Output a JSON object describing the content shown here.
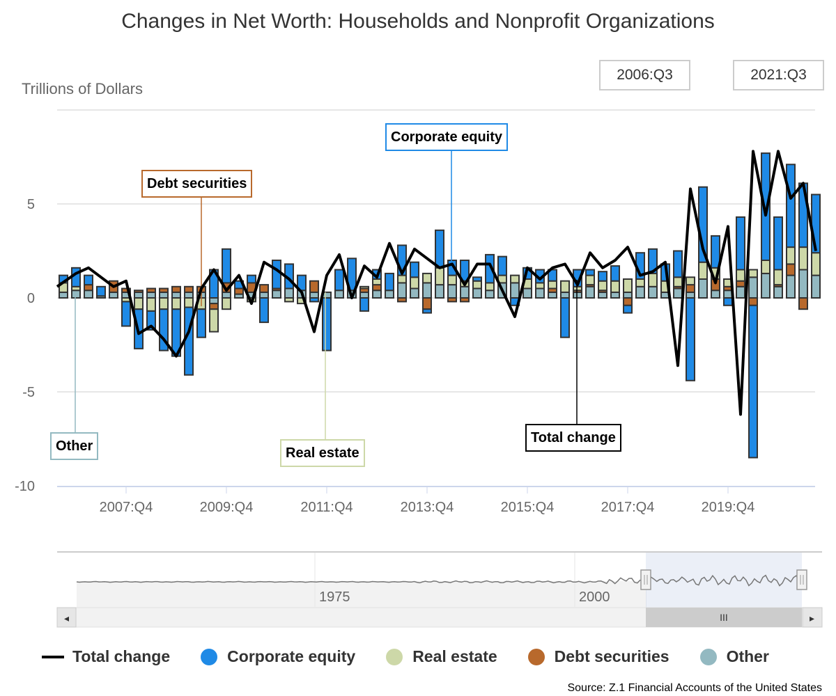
{
  "title": "Changes in Net Worth: Households and Nonprofit Organizations",
  "range_selector": {
    "from": "2006:Q3",
    "to": "2021:Q3"
  },
  "source": "Source: Z.1 Financial Accounts of the United States",
  "colors": {
    "total": "#000000",
    "corporate_equity": "#1f8ae6",
    "real_estate": "#cdd8a8",
    "debt_securities": "#b8692c",
    "other": "#93b9c1",
    "bar_stroke": "#333333"
  },
  "annotations": [
    {
      "id": "debt",
      "label": "Debt securities"
    },
    {
      "id": "equity",
      "label": "Corporate equity"
    },
    {
      "id": "other",
      "label": "Other"
    },
    {
      "id": "realestate",
      "label": "Real estate"
    },
    {
      "id": "total",
      "label": "Total change"
    }
  ],
  "legend": [
    {
      "key": "total",
      "label": "Total change"
    },
    {
      "key": "corporate_equity",
      "label": "Corporate equity"
    },
    {
      "key": "real_estate",
      "label": "Real estate"
    },
    {
      "key": "debt_securities",
      "label": "Debt securities"
    },
    {
      "key": "other",
      "label": "Other"
    }
  ],
  "navigator": {
    "tick_labels": [
      "1975",
      "2000"
    ],
    "scroll_left": "◂",
    "scroll_right": "▸",
    "grip": "III"
  },
  "chart_data": {
    "type": "bar",
    "stacked": true,
    "title": "Changes in Net Worth: Households and Nonprofit Organizations",
    "ylabel": "Trillions of Dollars",
    "xlabel": "",
    "ylim": [
      -10,
      10
    ],
    "yticks": [
      -10,
      -5,
      0,
      5
    ],
    "xtick_labels": [
      "2007:Q4",
      "2009:Q4",
      "2011:Q4",
      "2013:Q4",
      "2015:Q4",
      "2017:Q4",
      "2019:Q4"
    ],
    "xtick_start_index": 5,
    "xtick_step": 8,
    "grid": true,
    "legend_position": "bottom",
    "categories_start": "2006:Q3",
    "categories_end": "2021:Q3",
    "series": [
      {
        "name": "Corporate equity",
        "key": "corporate_equity",
        "type": "bar",
        "values": [
          0.4,
          1.0,
          0.5,
          0.5,
          0.0,
          -1.3,
          -2.1,
          -1.0,
          -2.2,
          -2.5,
          -3.6,
          -1.5,
          1.5,
          1.8,
          0.4,
          0.4,
          -1.3,
          1.5,
          1.3,
          0.8,
          -0.2,
          -2.8,
          1.1,
          1.7,
          -0.7,
          0.5,
          0.9,
          1.6,
          0.8,
          -0.2,
          2.0,
          0.8,
          1.1,
          0.2,
          1.5,
          1.0,
          -0.4,
          0.6,
          0.7,
          0.6,
          -2.1,
          0.9,
          0.3,
          0.5,
          0.8,
          -0.4,
          1.4,
          1.3,
          0.9,
          1.4,
          -4.4,
          4.0,
          1.7,
          -0.4,
          2.8,
          -8.1,
          5.7,
          2.8,
          4.4,
          3.4,
          3.1
        ]
      },
      {
        "name": "Real estate",
        "key": "real_estate",
        "type": "bar",
        "values": [
          0.5,
          0.2,
          0.0,
          0.0,
          0.0,
          -0.2,
          -0.6,
          -0.7,
          -0.6,
          -0.6,
          -0.5,
          -0.6,
          -1.2,
          -0.6,
          0.0,
          -0.2,
          0.0,
          0.0,
          -0.2,
          -0.3,
          0.0,
          0.0,
          0.0,
          0.0,
          0.1,
          0.3,
          0.0,
          0.4,
          0.6,
          0.5,
          0.9,
          0.5,
          0.3,
          0.4,
          0.4,
          0.4,
          0.4,
          0.5,
          0.3,
          0.4,
          0.6,
          0.2,
          0.5,
          0.5,
          0.6,
          0.7,
          0.4,
          0.7,
          0.6,
          0.5,
          0.4,
          0.9,
          0.6,
          0.4,
          0.6,
          0.4,
          0.7,
          0.8,
          0.9,
          1.2,
          1.2
        ]
      },
      {
        "name": "Debt securities",
        "key": "debt_securities",
        "type": "bar",
        "values": [
          0.0,
          0.0,
          0.3,
          0.0,
          0.6,
          0.2,
          0.1,
          0.2,
          0.2,
          0.3,
          0.3,
          0.3,
          -0.3,
          0.5,
          0.3,
          0.5,
          0.4,
          0.1,
          0.0,
          0.0,
          0.6,
          0.0,
          0.0,
          0.0,
          0.2,
          0.3,
          0.0,
          -0.2,
          0.0,
          -0.6,
          0.0,
          -0.2,
          -0.2,
          0.0,
          0.0,
          0.0,
          0.0,
          0.0,
          0.0,
          0.2,
          0.0,
          0.1,
          0.1,
          0.1,
          0.0,
          -0.4,
          0.0,
          0.0,
          0.0,
          0.1,
          0.4,
          0.0,
          0.6,
          0.2,
          0.3,
          -0.4,
          0.0,
          0.1,
          0.6,
          -0.6,
          0.0
        ]
      },
      {
        "name": "Other",
        "key": "other",
        "type": "bar",
        "values": [
          0.3,
          0.4,
          0.4,
          0.1,
          0.3,
          0.3,
          0.3,
          0.3,
          0.3,
          0.3,
          0.3,
          0.3,
          -0.3,
          0.3,
          0.2,
          0.3,
          0.3,
          0.4,
          0.5,
          0.4,
          0.3,
          0.3,
          0.4,
          0.4,
          0.3,
          0.4,
          0.4,
          0.8,
          0.5,
          0.8,
          0.7,
          0.7,
          0.6,
          0.5,
          0.4,
          0.8,
          0.8,
          0.5,
          0.5,
          0.3,
          0.3,
          0.3,
          0.6,
          0.3,
          0.3,
          0.3,
          0.6,
          0.6,
          0.3,
          0.5,
          0.3,
          1.0,
          0.4,
          0.4,
          0.6,
          1.1,
          1.3,
          0.6,
          1.2,
          1.5,
          1.2
        ]
      },
      {
        "name": "Total change",
        "key": "total",
        "type": "line",
        "values": [
          0.6,
          1.3,
          1.6,
          1.1,
          0.6,
          0.9,
          -1.9,
          -1.5,
          -2.2,
          -3.1,
          -1.8,
          0.5,
          1.5,
          0.4,
          1.2,
          -0.3,
          1.9,
          1.5,
          1.0,
          0.3,
          -1.8,
          1.2,
          2.3,
          0.0,
          1.7,
          1.1,
          2.9,
          1.3,
          2.6,
          2.1,
          1.6,
          1.8,
          0.7,
          1.8,
          1.8,
          0.4,
          -1.0,
          1.6,
          1.0,
          1.6,
          1.8,
          0.7,
          2.4,
          1.6,
          2.0,
          2.7,
          1.2,
          1.4,
          1.9,
          -3.6,
          5.8,
          2.6,
          0.8,
          3.8,
          -6.2,
          7.8,
          4.4,
          7.8,
          5.3,
          6.1,
          2.5
        ]
      }
    ],
    "annotations": [
      {
        "label": "Debt securities",
        "series": "Debt securities"
      },
      {
        "label": "Corporate equity",
        "series": "Corporate equity"
      },
      {
        "label": "Other",
        "series": "Other"
      },
      {
        "label": "Real estate",
        "series": "Real estate"
      },
      {
        "label": "Total change",
        "series": "Total change"
      }
    ],
    "navigator": {
      "x_ticks": [
        "1975",
        "2000"
      ],
      "selected_range": [
        "2006:Q3",
        "2021:Q3"
      ]
    }
  }
}
